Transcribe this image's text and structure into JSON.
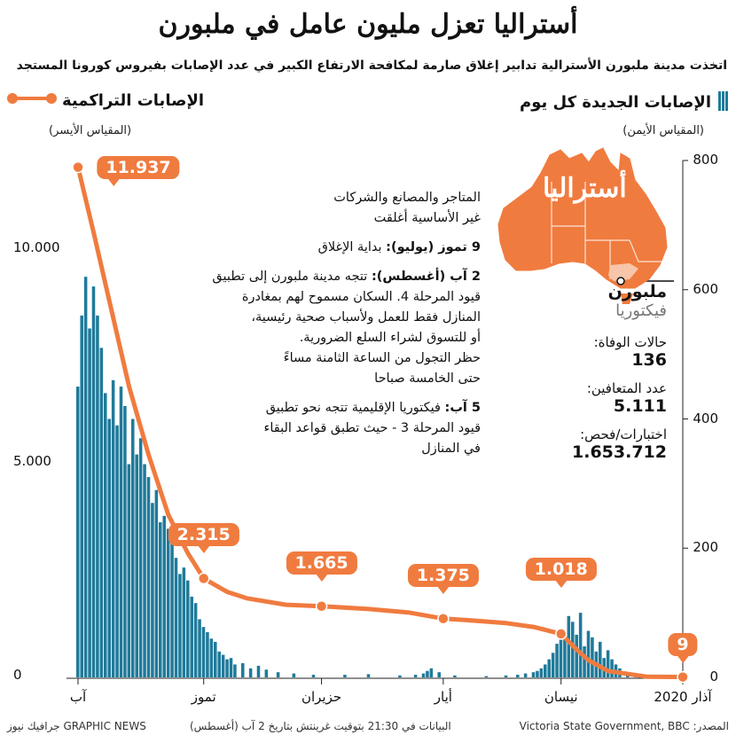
{
  "title": "أستراليا تعزل مليون عامل في ملبورن",
  "subtitle": "اتخذت مدينة ملبورن الأسترالية تدابير إغلاق صارمة لمكافحة الارتفاع الكبير في عدد الإصابات بفيروس كورونا المستجد",
  "legend": {
    "new": "الإصابات الجديدة كل يوم",
    "new_scale": "(المقياس الأيمن)",
    "cumulative": "الإصابات التراكمية",
    "cumulative_scale": "(المقياس الأيسر)"
  },
  "notes": {
    "n1_line1": "المتاجر والمصانع والشركات",
    "n1_line2": "غير الأساسية أغلقت",
    "n2_bold": "9 تموز (يوليو):",
    "n2_text": " بداية الإغلاق",
    "n3_bold": "2 آب (أغسطس):",
    "n3_text": " تتجه مدينة ملبورن إلى تطبيق",
    "n3_line2": "قيود المرحلة 4. السكان مسموح لهم بمغادرة",
    "n3_line3": "المنازل فقط للعمل ولأسباب صحية رئيسية،",
    "n3_line4": "أو للتسوق لشراء السلع الضرورية.",
    "n3_line5": "حظر التجول من الساعة الثامنة مساءً",
    "n3_line6": "حتى الخامسة صباحا",
    "n4_bold": "5 آب:",
    "n4_text": " فيكتوريا الإقليمية تتجه نحو تطبيق",
    "n4_line2": "قيود المرحلة 3 - حيث تطبق قواعد البقاء",
    "n4_line3": "في المنازل"
  },
  "map": {
    "label": "أستراليا",
    "color": "#f07b3f"
  },
  "stats": {
    "city": "ملبورن",
    "state": "فيكتوريا",
    "deaths_label": "حالات الوفاة:",
    "deaths": "136",
    "recovered_label": "عدد المتعافين:",
    "recovered": "5.111",
    "tests_label": "اختبارات/فحص:",
    "tests": "1.653.712"
  },
  "footer": {
    "source": "المصدر: Victoria State Government, BBC",
    "note": "البيانات في 21:30 بتوقيت غرينتش بتاريخ 2 آب (أغسطس)",
    "brand": "GRAPHIC NEWS جرافيك نيوز"
  },
  "chart_data": {
    "type": "bar",
    "title": "أستراليا تعزل مليون عامل في ملبورن",
    "x_direction": "right-to-left (time runs from March 2020 at right to August at left)",
    "x_ticks": [
      "آذار 2020",
      "نيسان",
      "أيار",
      "حزيران",
      "تموز",
      "آب"
    ],
    "x_range": [
      "2020-03-01",
      "2020-08-02"
    ],
    "y_left": {
      "label": "الإصابات التراكمية",
      "ticks": [
        "0",
        "5.000",
        "10.000"
      ],
      "range": [
        0,
        12500
      ]
    },
    "y_right": {
      "label": "الإصابات الجديدة كل يوم",
      "ticks": [
        "0",
        "200",
        "400",
        "600",
        "800"
      ],
      "range": [
        0,
        800
      ]
    },
    "colors": {
      "bars": "#1f7a9a",
      "line": "#f07b3f"
    },
    "series": [
      {
        "name": "الإصابات التراكمية",
        "type": "line",
        "axis": "left",
        "points": [
          {
            "date": "2020-03-01",
            "value": 9
          },
          {
            "date": "2020-03-10",
            "value": 15
          },
          {
            "date": "2020-03-20",
            "value": 150
          },
          {
            "date": "2020-03-25",
            "value": 400
          },
          {
            "date": "2020-03-28",
            "value": 650
          },
          {
            "date": "2020-04-01",
            "value": 1018
          },
          {
            "date": "2020-04-08",
            "value": 1180
          },
          {
            "date": "2020-04-15",
            "value": 1270
          },
          {
            "date": "2020-04-25",
            "value": 1340
          },
          {
            "date": "2020-05-01",
            "value": 1375
          },
          {
            "date": "2020-05-10",
            "value": 1520
          },
          {
            "date": "2020-05-20",
            "value": 1600
          },
          {
            "date": "2020-06-01",
            "value": 1665
          },
          {
            "date": "2020-06-10",
            "value": 1700
          },
          {
            "date": "2020-06-20",
            "value": 1850
          },
          {
            "date": "2020-06-25",
            "value": 2000
          },
          {
            "date": "2020-07-01",
            "value": 2315
          },
          {
            "date": "2020-07-05",
            "value": 2900
          },
          {
            "date": "2020-07-10",
            "value": 3800
          },
          {
            "date": "2020-07-15",
            "value": 5200
          },
          {
            "date": "2020-07-20",
            "value": 6800
          },
          {
            "date": "2020-07-25",
            "value": 8800
          },
          {
            "date": "2020-07-29",
            "value": 10400
          },
          {
            "date": "2020-08-02",
            "value": 11937
          }
        ],
        "labels": [
          {
            "date": "2020-08-02",
            "text": "11.937"
          },
          {
            "date": "2020-07-01",
            "text": "2.315"
          },
          {
            "date": "2020-06-01",
            "text": "1.665"
          },
          {
            "date": "2020-05-01",
            "text": "1.375"
          },
          {
            "date": "2020-04-01",
            "text": "1.018"
          },
          {
            "date": "2020-03-01",
            "text": "9"
          }
        ]
      },
      {
        "name": "الإصابات الجديدة كل يوم",
        "type": "bar",
        "axis": "right",
        "points": [
          {
            "date": "2020-03-10",
            "value": 2
          },
          {
            "date": "2020-03-13",
            "value": 4
          },
          {
            "date": "2020-03-15",
            "value": 8
          },
          {
            "date": "2020-03-17",
            "value": 14
          },
          {
            "date": "2020-03-18",
            "value": 20
          },
          {
            "date": "2020-03-19",
            "value": 28
          },
          {
            "date": "2020-03-20",
            "value": 42
          },
          {
            "date": "2020-03-21",
            "value": 30
          },
          {
            "date": "2020-03-22",
            "value": 55
          },
          {
            "date": "2020-03-23",
            "value": 40
          },
          {
            "date": "2020-03-24",
            "value": 62
          },
          {
            "date": "2020-03-25",
            "value": 72
          },
          {
            "date": "2020-03-26",
            "value": 48
          },
          {
            "date": "2020-03-27",
            "value": 100
          },
          {
            "date": "2020-03-28",
            "value": 66
          },
          {
            "date": "2020-03-29",
            "value": 86
          },
          {
            "date": "2020-03-30",
            "value": 95
          },
          {
            "date": "2020-03-31",
            "value": 60
          },
          {
            "date": "2020-04-01",
            "value": 70
          },
          {
            "date": "2020-04-02",
            "value": 52
          },
          {
            "date": "2020-04-03",
            "value": 38
          },
          {
            "date": "2020-04-04",
            "value": 28
          },
          {
            "date": "2020-04-05",
            "value": 20
          },
          {
            "date": "2020-04-06",
            "value": 14
          },
          {
            "date": "2020-04-07",
            "value": 10
          },
          {
            "date": "2020-04-08",
            "value": 8
          },
          {
            "date": "2020-04-10",
            "value": 6
          },
          {
            "date": "2020-04-12",
            "value": 4
          },
          {
            "date": "2020-04-15",
            "value": 3
          },
          {
            "date": "2020-04-20",
            "value": 2
          },
          {
            "date": "2020-04-28",
            "value": 3
          },
          {
            "date": "2020-05-02",
            "value": 8
          },
          {
            "date": "2020-05-04",
            "value": 14
          },
          {
            "date": "2020-05-05",
            "value": 10
          },
          {
            "date": "2020-05-06",
            "value": 6
          },
          {
            "date": "2020-05-08",
            "value": 4
          },
          {
            "date": "2020-05-12",
            "value": 3
          },
          {
            "date": "2020-05-20",
            "value": 5
          },
          {
            "date": "2020-05-26",
            "value": 4
          },
          {
            "date": "2020-06-03",
            "value": 4
          },
          {
            "date": "2020-06-08",
            "value": 6
          },
          {
            "date": "2020-06-12",
            "value": 8
          },
          {
            "date": "2020-06-15",
            "value": 12
          },
          {
            "date": "2020-06-17",
            "value": 18
          },
          {
            "date": "2020-06-19",
            "value": 14
          },
          {
            "date": "2020-06-21",
            "value": 22
          },
          {
            "date": "2020-06-23",
            "value": 20
          },
          {
            "date": "2020-06-24",
            "value": 30
          },
          {
            "date": "2020-06-25",
            "value": 28
          },
          {
            "date": "2020-06-26",
            "value": 35
          },
          {
            "date": "2020-06-27",
            "value": 40
          },
          {
            "date": "2020-06-28",
            "value": 55
          },
          {
            "date": "2020-06-29",
            "value": 60
          },
          {
            "date": "2020-06-30",
            "value": 70
          },
          {
            "date": "2020-07-01",
            "value": 78
          },
          {
            "date": "2020-07-02",
            "value": 90
          },
          {
            "date": "2020-07-03",
            "value": 115
          },
          {
            "date": "2020-07-04",
            "value": 125
          },
          {
            "date": "2020-07-05",
            "value": 150
          },
          {
            "date": "2020-07-06",
            "value": 170
          },
          {
            "date": "2020-07-07",
            "value": 160
          },
          {
            "date": "2020-07-08",
            "value": 185
          },
          {
            "date": "2020-07-09",
            "value": 210
          },
          {
            "date": "2020-07-10",
            "value": 230
          },
          {
            "date": "2020-07-11",
            "value": 250
          },
          {
            "date": "2020-07-12",
            "value": 240
          },
          {
            "date": "2020-07-13",
            "value": 290
          },
          {
            "date": "2020-07-14",
            "value": 270
          },
          {
            "date": "2020-07-15",
            "value": 310
          },
          {
            "date": "2020-07-16",
            "value": 330
          },
          {
            "date": "2020-07-17",
            "value": 370
          },
          {
            "date": "2020-07-18",
            "value": 345
          },
          {
            "date": "2020-07-19",
            "value": 400
          },
          {
            "date": "2020-07-20",
            "value": 330
          },
          {
            "date": "2020-07-21",
            "value": 420
          },
          {
            "date": "2020-07-22",
            "value": 450
          },
          {
            "date": "2020-07-23",
            "value": 390
          },
          {
            "date": "2020-07-24",
            "value": 460
          },
          {
            "date": "2020-07-25",
            "value": 400
          },
          {
            "date": "2020-07-26",
            "value": 440
          },
          {
            "date": "2020-07-27",
            "value": 510
          },
          {
            "date": "2020-07-28",
            "value": 560
          },
          {
            "date": "2020-07-29",
            "value": 605
          },
          {
            "date": "2020-07-30",
            "value": 540
          },
          {
            "date": "2020-07-31",
            "value": 620
          },
          {
            "date": "2020-08-01",
            "value": 560
          },
          {
            "date": "2020-08-02",
            "value": 450
          }
        ]
      }
    ]
  }
}
